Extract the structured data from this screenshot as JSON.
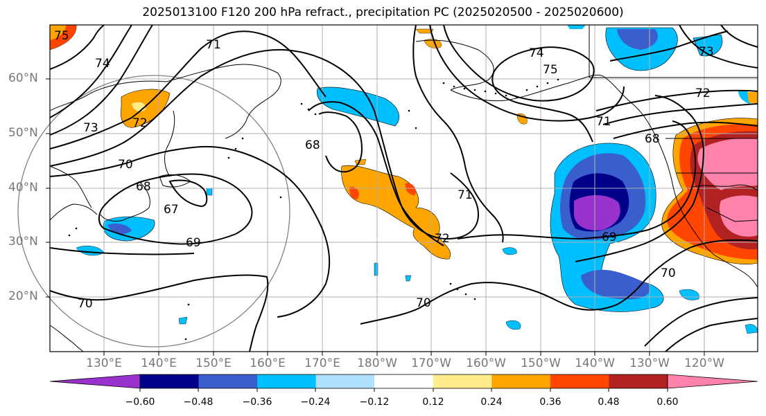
{
  "title": "2025013100 F120 200 hPa refract., precipitation PC (2025020500 - 2025020600)",
  "map": {
    "lat_labels": [
      "60°N",
      "50°N",
      "40°N",
      "30°N",
      "20°N"
    ],
    "lon_labels": [
      "130°E",
      "140°E",
      "150°E",
      "160°E",
      "170°E",
      "180°W",
      "170°W",
      "160°W",
      "150°W",
      "140°W",
      "130°W",
      "120°W"
    ],
    "contour_labels": [
      "75",
      "74",
      "74",
      "71",
      "73",
      "72",
      "70",
      "68",
      "67",
      "69",
      "70",
      "70",
      "68",
      "71",
      "72",
      "73",
      "72",
      "71",
      "68",
      "69",
      "70",
      "75"
    ]
  },
  "colorbar": {
    "ticks": [
      "−0.60",
      "−0.48",
      "−0.36",
      "−0.24",
      "−0.12",
      "0.12",
      "0.24",
      "0.36",
      "0.48",
      "0.60"
    ],
    "colors": [
      "#9932CC",
      "#00008B",
      "#3A5FCD",
      "#00BFFF",
      "#B0E2FF",
      "#FFFFFF",
      "#FFEC8B",
      "#FFA500",
      "#FF4500",
      "#B22222",
      "#FF82AB"
    ]
  }
}
